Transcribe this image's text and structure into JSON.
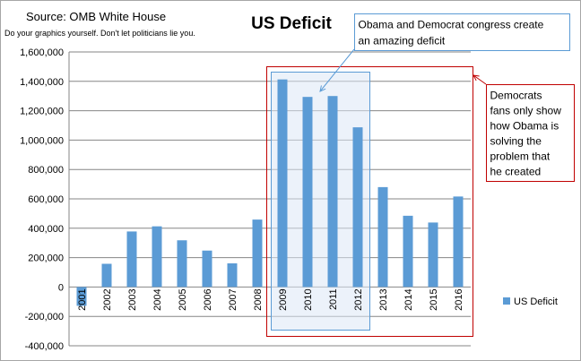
{
  "header": {
    "source": "Source: OMB White House",
    "note": "Do your graphics yourself. Don't let politicians lie you."
  },
  "chart_data": {
    "type": "bar",
    "title": "US Deficit",
    "xlabel": "",
    "ylabel": "",
    "categories": [
      "2001",
      "2002",
      "2003",
      "2004",
      "2005",
      "2006",
      "2007",
      "2008",
      "2009",
      "2010",
      "2011",
      "2012",
      "2013",
      "2014",
      "2015",
      "2016"
    ],
    "series": [
      {
        "name": "US Deficit",
        "color": "#5b9bd5",
        "values": [
          -128000,
          158000,
          378000,
          413000,
          318000,
          248000,
          161000,
          459000,
          1413000,
          1294000,
          1300000,
          1087000,
          680000,
          485000,
          439000,
          616000
        ]
      }
    ],
    "ylim": [
      -400000,
      1600000
    ],
    "yticks": [
      -400000,
      -200000,
      0,
      200000,
      400000,
      600000,
      800000,
      1000000,
      1200000,
      1400000,
      1600000
    ],
    "ytick_labels": [
      "-400,000",
      "-200,000",
      "0",
      "200,000",
      "400,000",
      "600,000",
      "800,000",
      "1,000,000",
      "1,200,000",
      "1,400,000",
      "1,600,000"
    ],
    "grid": true,
    "legend_position": "right",
    "annotations": [
      {
        "id": "obama-box",
        "text": "Obama and Democrat congress  create an amazing deficit",
        "color": "#5b9bd5"
      },
      {
        "id": "democrats-box",
        "text": "Democrats fans only show how Obama is solving the problem that he created",
        "color": "#c00000"
      }
    ]
  }
}
